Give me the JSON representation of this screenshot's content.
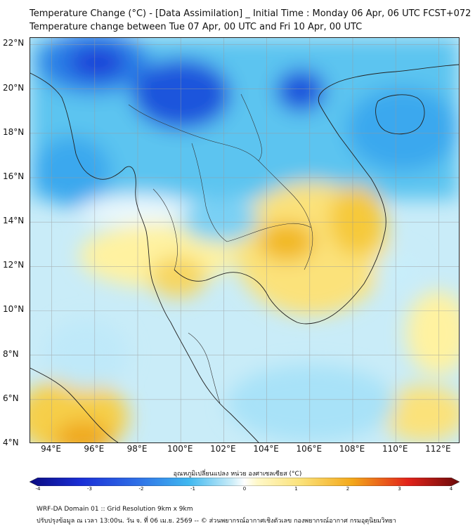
{
  "title_line1": "Temperature Change (°C) - [Data Assimilation] _ Initial Time : Monday 06 Apr, 06 UTC FCST+072",
  "title_line2": "Temperature change between Tue 07 Apr, 00 UTC and Fri 10 Apr, 00 UTC",
  "lat_labels": [
    "22°N",
    "20°N",
    "18°N",
    "16°N",
    "14°N",
    "12°N",
    "10°N",
    "8°N",
    "6°N",
    "4°N"
  ],
  "lon_labels": [
    "94°E",
    "96°E",
    "98°E",
    "100°E",
    "102°E",
    "104°E",
    "106°E",
    "108°E",
    "110°E",
    "112°E"
  ],
  "lon_range": [
    93,
    113
  ],
  "lat_range": [
    4,
    22.3
  ],
  "colorbar": {
    "title": "อุณหภูมิเปลี่ยนแปลง หน่วย องศาเซลเซียส (°C)",
    "ticks": [
      "-4",
      "-3",
      "-2",
      "-1",
      "0",
      "1",
      "2",
      "3",
      "4"
    ],
    "range": [
      -4,
      4
    ]
  },
  "colors": {
    "neg_strong": "#1a2fd6",
    "neg_mid": "#2f8ee8",
    "neg_light": "#8ed8f4",
    "neutral": "#ffffff",
    "pos_light": "#fff2a0",
    "pos_mid": "#f3c025",
    "pos_strong": "#e2231a",
    "coast": "#222222",
    "grid": "#9a9a9a"
  },
  "footer_line1": "WRF-DA Domain 01 :: Grid Resolution 9km x 9km",
  "footer_line2": "ปรับปรุงข้อมูล ณ เวลา 13:00น. วัน จ. ที่ 06 เม.ย. 2569 -- © ส่วนพยากรณ์อากาศเชิงตัวเลข กองพยากรณ์อากาศ กรมอุตุนิยมวิทยา"
}
